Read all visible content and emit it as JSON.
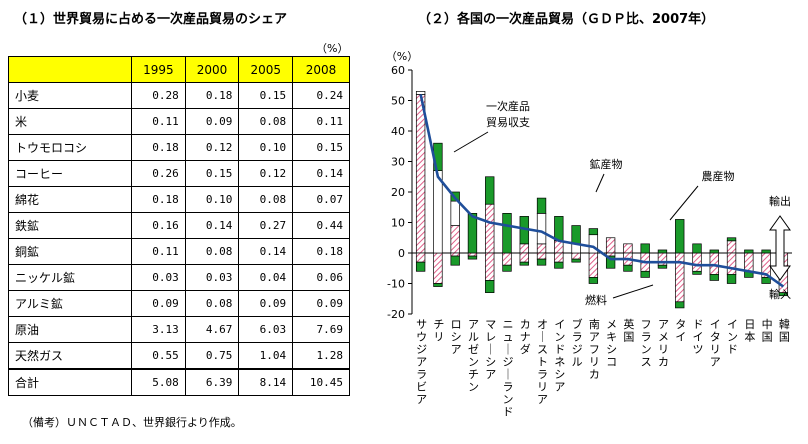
{
  "left": {
    "title": "（１）世界貿易に占める一次産品貿易のシェア",
    "unit": "（%）",
    "columns": [
      "",
      "1995",
      "2000",
      "2005",
      "2008"
    ],
    "rows": [
      {
        "label": "小麦",
        "values": [
          "0.28",
          "0.18",
          "0.15",
          "0.24"
        ]
      },
      {
        "label": "米",
        "values": [
          "0.11",
          "0.09",
          "0.08",
          "0.11"
        ]
      },
      {
        "label": "トウモロコシ",
        "values": [
          "0.18",
          "0.12",
          "0.10",
          "0.15"
        ]
      },
      {
        "label": "コーヒー",
        "values": [
          "0.26",
          "0.15",
          "0.12",
          "0.14"
        ]
      },
      {
        "label": "綿花",
        "values": [
          "0.18",
          "0.10",
          "0.08",
          "0.07"
        ]
      },
      {
        "label": "鉄鉱",
        "values": [
          "0.16",
          "0.14",
          "0.27",
          "0.44"
        ]
      },
      {
        "label": "銅鉱",
        "values": [
          "0.11",
          "0.08",
          "0.14",
          "0.18"
        ]
      },
      {
        "label": "ニッケル鉱",
        "values": [
          "0.03",
          "0.03",
          "0.04",
          "0.06"
        ]
      },
      {
        "label": "アルミ鉱",
        "values": [
          "0.09",
          "0.08",
          "0.09",
          "0.09"
        ]
      },
      {
        "label": "原油",
        "values": [
          "3.13",
          "4.67",
          "6.03",
          "7.69"
        ]
      },
      {
        "label": "天然ガス",
        "values": [
          "0.55",
          "0.75",
          "1.04",
          "1.28"
        ]
      }
    ],
    "total": {
      "label": "合計",
      "values": [
        "5.08",
        "6.39",
        "8.14",
        "10.45"
      ]
    },
    "note": "（備考）ＵＮＣＴＡＤ、世界銀行より作成。"
  },
  "chart_data": {
    "type": "bar",
    "title": "（２）各国の一次産品貿易（ＧＤＰ比、2007年）",
    "yunit": "（%）",
    "ylim": [
      -20,
      60
    ],
    "yticks": [
      -20,
      -10,
      0,
      10,
      20,
      30,
      40,
      50,
      60
    ],
    "categories": [
      "サウジアラビア",
      "チリ",
      "ロシア",
      "アルゼンチン",
      "マレーシア",
      "ニュージーランド",
      "カナダ",
      "オーストラリア",
      "インドネシア",
      "ブラジル",
      "南アフリカ",
      "メキシコ",
      "英国",
      "フランス",
      "アメリカ",
      "タイ",
      "ドイツ",
      "イタリア",
      "インド",
      "日本",
      "中国",
      "韓国"
    ],
    "series": [
      {
        "name": "燃料",
        "pattern": "pink-hatch",
        "pos": [
          52,
          0,
          9,
          0,
          16,
          0,
          3,
          3,
          4,
          0,
          0,
          5,
          3,
          0,
          0,
          0,
          0,
          0,
          4,
          0,
          0,
          0
        ],
        "neg": [
          -3,
          -10,
          -1,
          -1,
          -9,
          -4,
          -3,
          -2,
          -3,
          -2,
          -8,
          -1,
          -4,
          -6,
          -4,
          -16,
          -6,
          -7,
          -7,
          -6,
          -8,
          -13
        ]
      },
      {
        "name": "鉱産物",
        "pattern": "white",
        "pos": [
          1,
          27,
          8,
          0,
          0,
          0,
          0,
          10,
          0,
          3,
          6,
          0,
          0,
          0,
          0,
          0,
          0,
          0,
          0,
          0,
          0,
          0
        ],
        "neg": [
          0,
          0,
          0,
          0,
          0,
          0,
          0,
          0,
          0,
          0,
          0,
          0,
          0,
          0,
          0,
          0,
          0,
          0,
          0,
          0,
          0,
          0
        ]
      },
      {
        "name": "農産物",
        "pattern": "green",
        "pos": [
          0,
          9,
          3,
          13,
          9,
          13,
          9,
          5,
          8,
          6,
          2,
          0,
          0,
          3,
          1,
          11,
          3,
          1,
          1,
          1,
          1,
          0
        ],
        "neg": [
          -3,
          -1,
          -3,
          -1,
          -4,
          -2,
          -1,
          -2,
          -2,
          -1,
          -2,
          -4,
          -2,
          -2,
          -1,
          -2,
          -1,
          -2,
          -3,
          -2,
          -2,
          -1
        ]
      }
    ],
    "line": {
      "name": "一次産品貿易収支",
      "values": [
        52,
        25,
        18,
        12,
        10,
        9,
        8,
        7,
        4,
        3,
        2,
        -2,
        -2,
        -3,
        -3,
        -3,
        -4,
        -4,
        -5,
        -6,
        -7,
        -11
      ]
    },
    "annotations": {
      "line": "一次産品\n貿易収支",
      "mineral": "鉱産物",
      "agri": "農産物",
      "fuel": "燃料",
      "export": "輸出",
      "import": "輸入"
    }
  }
}
